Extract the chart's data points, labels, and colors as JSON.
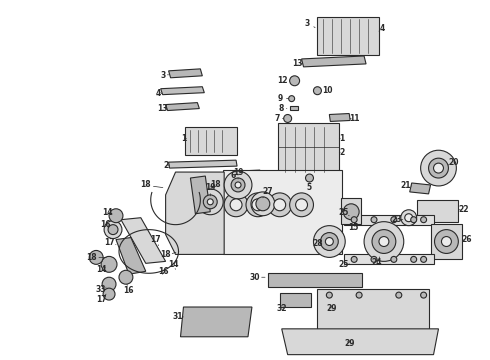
{
  "background_color": "#ffffff",
  "figure_width": 4.9,
  "figure_height": 3.6,
  "dpi": 100,
  "line_color": "#2a2a2a",
  "part_fill": "#d8d8d8",
  "part_fill_dark": "#b8b8b8",
  "part_fill_light": "#ececec",
  "label_fontsize": 5.5,
  "label_color": "#111111"
}
